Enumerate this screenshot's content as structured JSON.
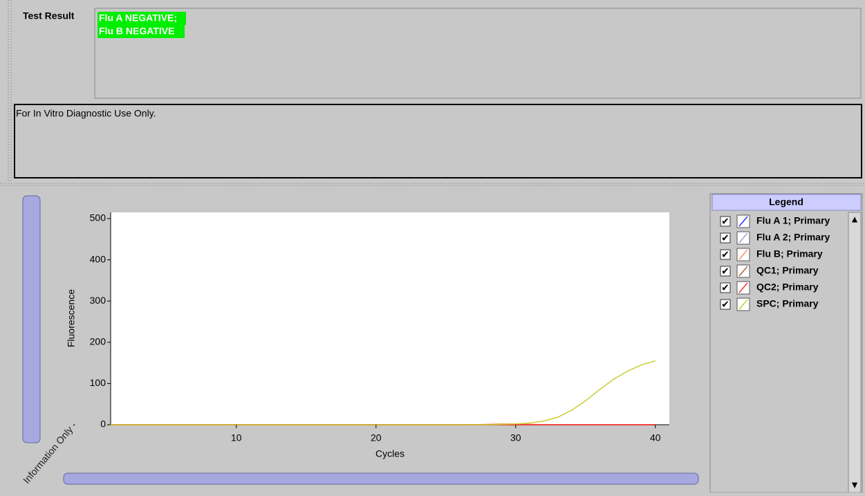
{
  "result_panel": {
    "label": "Test Result",
    "result_lines": [
      "Flu A NEGATIVE;",
      "Flu B NEGATIVE"
    ],
    "note": "For In Vitro Diagnostic Use Only."
  },
  "watermark": "Information Only -",
  "chart_data": {
    "type": "line",
    "x_label": "Cycles",
    "y_label": "Fluorescence",
    "legend_title": "Legend",
    "x": [
      1,
      2,
      3,
      4,
      5,
      6,
      7,
      8,
      9,
      10,
      11,
      12,
      13,
      14,
      15,
      16,
      17,
      18,
      19,
      20,
      21,
      22,
      23,
      24,
      25,
      26,
      27,
      28,
      29,
      30,
      31,
      32,
      33,
      34,
      35,
      36,
      37,
      38,
      39,
      40
    ],
    "series": [
      {
        "name": "Flu A 1; Primary",
        "color": "#3030ff",
        "values": [
          0,
          0,
          0,
          0,
          0,
          0,
          0,
          0,
          0,
          0,
          0,
          0,
          0,
          0,
          0,
          0,
          0,
          0,
          0,
          0,
          0,
          0,
          0,
          0,
          0,
          0,
          0,
          0,
          0,
          0,
          0,
          0,
          0,
          0,
          0,
          0,
          0,
          0,
          0,
          0
        ]
      },
      {
        "name": "Flu A 2; Primary",
        "color": "#a0a0d8",
        "values": [
          0,
          0,
          0,
          0,
          0,
          0,
          0,
          0,
          0,
          0,
          0,
          0,
          0,
          0,
          0,
          0,
          0,
          0,
          0,
          0,
          0,
          0,
          0,
          0,
          0,
          0,
          0,
          0,
          0,
          0,
          0,
          0,
          0,
          0,
          0,
          0,
          0,
          0,
          0,
          0
        ]
      },
      {
        "name": "Flu B; Primary",
        "color": "#ff9060",
        "values": [
          0,
          0,
          0,
          0,
          0,
          0,
          0,
          0,
          0,
          0,
          0,
          0,
          0,
          0,
          0,
          0,
          0,
          0,
          0,
          0,
          0,
          0,
          0,
          0,
          0,
          0,
          0,
          1,
          2,
          2,
          1,
          0,
          0,
          0,
          0,
          0,
          0,
          0,
          0,
          0
        ]
      },
      {
        "name": "QC1; Primary",
        "color": "#b06030",
        "values": [
          0,
          0,
          0,
          0,
          0,
          0,
          0,
          0,
          0,
          0,
          0,
          0,
          0,
          0,
          0,
          0,
          0,
          0,
          0,
          0,
          0,
          0,
          0,
          0,
          0,
          0,
          0,
          0,
          0,
          0,
          0,
          0,
          0,
          0,
          0,
          0,
          0,
          0,
          0,
          0
        ]
      },
      {
        "name": "QC2; Primary",
        "color": "#ff3030",
        "values": [
          0,
          0,
          0,
          0,
          0,
          0,
          0,
          0,
          0,
          0,
          0,
          0,
          0,
          0,
          0,
          0,
          0,
          0,
          0,
          0,
          0,
          0,
          0,
          0,
          0,
          0,
          0,
          0,
          0,
          0,
          0,
          0,
          0,
          0,
          0,
          0,
          0,
          0,
          0,
          0
        ]
      },
      {
        "name": "SPC; Primary",
        "color": "#cccc33",
        "values": [
          0,
          0,
          0,
          0,
          0,
          0,
          0,
          0,
          0,
          0,
          0,
          0,
          0,
          0,
          0,
          0,
          0,
          0,
          0,
          0,
          0,
          0,
          0,
          0,
          0,
          0,
          0,
          0,
          1,
          2,
          4,
          9,
          18,
          35,
          58,
          85,
          110,
          130,
          145,
          155
        ]
      }
    ],
    "xlim": [
      1,
      41
    ],
    "ylim": [
      0,
      515
    ],
    "xticks": [
      10,
      20,
      30,
      40
    ],
    "yticks": [
      0,
      100,
      200,
      300,
      400,
      500
    ]
  }
}
